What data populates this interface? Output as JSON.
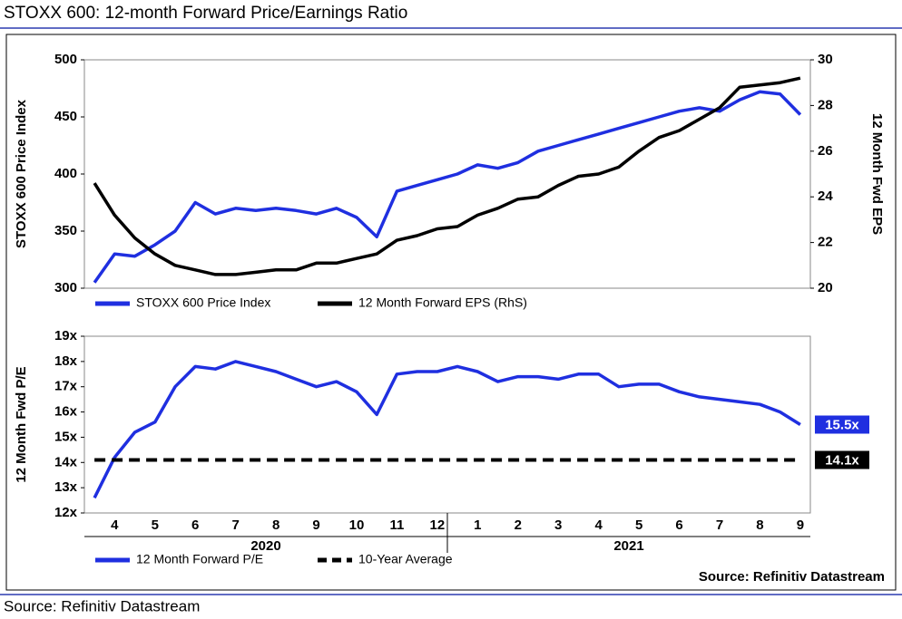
{
  "title": "STOXX 600: 12-month Forward Price/Earnings Ratio",
  "source": "Source: Refinitiv Datastream",
  "chart_data": [
    {
      "type": "line",
      "ylabel": "STOXX 600 Price Index",
      "y2label": "12 Month Fwd EPS",
      "ylim": [
        300,
        500
      ],
      "yticks": [
        300,
        350,
        400,
        450,
        500
      ],
      "y2lim": [
        20,
        30
      ],
      "y2ticks": [
        20,
        22,
        24,
        26,
        28,
        30
      ],
      "series": [
        {
          "name": "STOXX 600 Price Index",
          "color": "#1f2fe0",
          "values": [
            305,
            330,
            328,
            338,
            350,
            375,
            365,
            370,
            368,
            370,
            368,
            365,
            370,
            362,
            345,
            385,
            390,
            395,
            400,
            408,
            405,
            410,
            420,
            425,
            430,
            435,
            440,
            445,
            450,
            455,
            458,
            455,
            465,
            472,
            470,
            452
          ]
        },
        {
          "name": "12 Month Forward EPS (RhS)",
          "color": "#000000",
          "axis": "y2",
          "values": [
            24.6,
            23.2,
            22.2,
            21.5,
            21.0,
            20.8,
            20.6,
            20.6,
            20.7,
            20.8,
            20.8,
            21.1,
            21.1,
            21.3,
            21.5,
            22.1,
            22.3,
            22.6,
            22.7,
            23.2,
            23.5,
            23.9,
            24.0,
            24.5,
            24.9,
            25.0,
            25.3,
            26.0,
            26.6,
            26.9,
            27.4,
            27.9,
            28.8,
            28.9,
            29.0,
            29.2
          ]
        }
      ]
    },
    {
      "type": "line",
      "ylabel": "12 Month Fwd P/E",
      "ylim": [
        12,
        19
      ],
      "yticks": [
        {
          "value": 12,
          "label": "12x"
        },
        {
          "value": 13,
          "label": "13x"
        },
        {
          "value": 14,
          "label": "14x"
        },
        {
          "value": 15,
          "label": "15x"
        },
        {
          "value": 16,
          "label": "16x"
        },
        {
          "value": 17,
          "label": "17x"
        },
        {
          "value": 18,
          "label": "18x"
        },
        {
          "value": 19,
          "label": "19x"
        }
      ],
      "categories": [
        null,
        "4",
        null,
        "5",
        null,
        "6",
        null,
        "7",
        null,
        "8",
        null,
        "9",
        null,
        "10",
        null,
        "11",
        null,
        "12",
        null,
        "1",
        null,
        "2",
        null,
        "3",
        null,
        "4",
        null,
        "5",
        null,
        "6",
        null,
        "7",
        null,
        "8",
        null,
        "9"
      ],
      "year_labels": [
        "2020",
        "2021"
      ],
      "note": "Source: Refinitiv Datastream",
      "series": [
        {
          "name": "12 Month Forward P/E",
          "color": "#1f2fe0",
          "values": [
            12.6,
            14.2,
            15.2,
            15.6,
            17.0,
            17.8,
            17.7,
            18.0,
            17.8,
            17.6,
            17.3,
            17.0,
            17.2,
            16.8,
            15.9,
            17.5,
            17.6,
            17.6,
            17.8,
            17.6,
            17.2,
            17.4,
            17.4,
            17.3,
            17.5,
            17.5,
            17.0,
            17.1,
            17.1,
            16.8,
            16.6,
            16.5,
            16.4,
            16.3,
            16.0,
            15.5
          ],
          "value_labels": [
            null,
            null,
            null,
            null,
            null,
            null,
            null,
            null,
            null,
            null,
            null,
            null,
            null,
            null,
            null,
            null,
            null,
            null,
            null,
            null,
            null,
            null,
            null,
            null,
            null,
            null,
            null,
            null,
            null,
            null,
            null,
            null,
            null,
            null,
            null,
            "15.5x"
          ]
        },
        {
          "name": "10-Year Average",
          "color": "#000000",
          "dash": true,
          "values": [
            14.1,
            14.1,
            14.1,
            14.1,
            14.1,
            14.1,
            14.1,
            14.1,
            14.1,
            14.1,
            14.1,
            14.1,
            14.1,
            14.1,
            14.1,
            14.1,
            14.1,
            14.1,
            14.1,
            14.1,
            14.1,
            14.1,
            14.1,
            14.1,
            14.1,
            14.1,
            14.1,
            14.1,
            14.1,
            14.1,
            14.1,
            14.1,
            14.1,
            14.1,
            14.1,
            14.1
          ],
          "value_labels": [
            null,
            null,
            null,
            null,
            null,
            null,
            null,
            null,
            null,
            null,
            null,
            null,
            null,
            null,
            null,
            null,
            null,
            null,
            null,
            null,
            null,
            null,
            null,
            null,
            null,
            null,
            null,
            null,
            null,
            null,
            null,
            null,
            null,
            null,
            null,
            "14.1x"
          ]
        }
      ]
    }
  ]
}
